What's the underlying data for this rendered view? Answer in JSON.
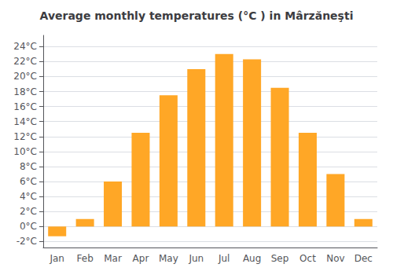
{
  "chart_data": {
    "type": "bar",
    "title": "Average monthly temperatures (°C ) in Mârzăneşti",
    "categories": [
      "Jan",
      "Feb",
      "Mar",
      "Apr",
      "May",
      "Jun",
      "Jul",
      "Aug",
      "Sep",
      "Oct",
      "Nov",
      "Dec"
    ],
    "values": [
      -1.3,
      1.0,
      6.0,
      12.5,
      17.5,
      21.0,
      23.0,
      22.3,
      18.5,
      12.5,
      7.0,
      1.0
    ],
    "color": "#FFA726",
    "ylim": [
      -2.8,
      25.5
    ],
    "yticks": [
      {
        "value": 24,
        "label": "24°C"
      },
      {
        "value": 22,
        "label": "22°C"
      },
      {
        "value": 20,
        "label": "20°C"
      },
      {
        "value": 18,
        "label": "18°C"
      },
      {
        "value": 16,
        "label": "16°C"
      },
      {
        "value": 14,
        "label": "14°C"
      },
      {
        "value": 12,
        "label": "12°C"
      },
      {
        "value": 10,
        "label": "10°C"
      },
      {
        "value": 8,
        "label": "8°C"
      },
      {
        "value": 6,
        "label": "6°C"
      },
      {
        "value": 4,
        "label": "4°C"
      },
      {
        "value": 2,
        "label": "2°C"
      },
      {
        "value": 0,
        "label": "0°C"
      },
      {
        "value": -2,
        "label": "-2°C"
      }
    ],
    "grid": true
  }
}
